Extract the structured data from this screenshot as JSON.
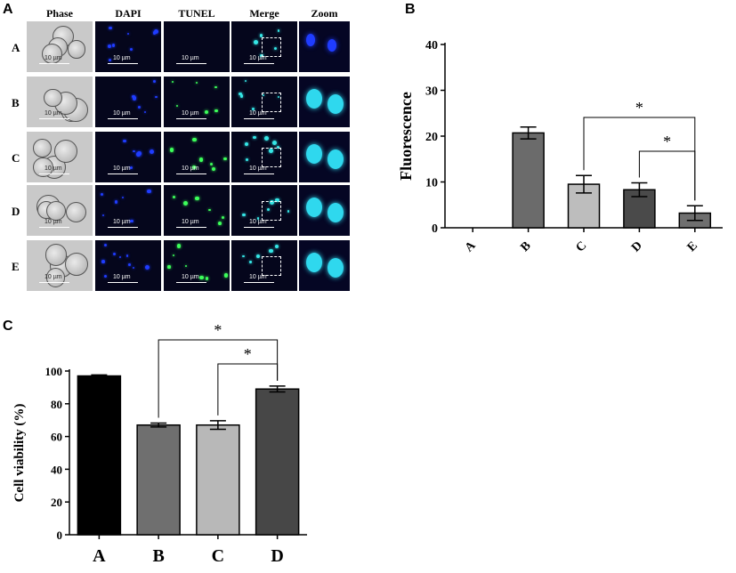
{
  "panels": {
    "a": "A",
    "b": "B",
    "c": "C"
  },
  "microscopy": {
    "columns": [
      "Phase",
      "DAPI",
      "TUNEL",
      "Merge",
      "Zoom"
    ],
    "rows": [
      "A",
      "B",
      "C",
      "D",
      "E"
    ],
    "scale_label": "10 µm",
    "colors": {
      "dapi": "#1f3cff",
      "tunel": "#3cff5a",
      "merge": "#35e6e6"
    }
  },
  "chart_data": [
    {
      "type": "bar",
      "categories": [
        "A",
        "B",
        "C",
        "D",
        "E"
      ],
      "values": [
        0,
        20.7,
        9.5,
        8.3,
        3.2
      ],
      "errors": [
        0,
        1.3,
        1.9,
        1.5,
        1.6
      ],
      "ylabel": "Fluorescence",
      "ylim": [
        0,
        40
      ],
      "yticks": [
        0,
        10,
        20,
        30,
        40
      ],
      "bar_colors": [
        "#ffffff",
        "#6b6b6b",
        "#bdbdbd",
        "#4a4a4a",
        "#6f6f6f"
      ],
      "significance": [
        {
          "from": "C",
          "to": "E",
          "label": "*"
        },
        {
          "from": "D",
          "to": "E",
          "label": "*"
        }
      ],
      "grid": false
    },
    {
      "type": "bar",
      "categories": [
        "A",
        "B",
        "C",
        "D"
      ],
      "values": [
        97,
        67,
        67,
        89
      ],
      "errors": [
        0.6,
        1.2,
        2.6,
        1.8
      ],
      "ylabel": "Cell viability (%)",
      "ylim": [
        0,
        100
      ],
      "yticks": [
        0,
        20,
        40,
        60,
        80,
        100
      ],
      "bar_colors": [
        "#000000",
        "#6f6f6f",
        "#b8b8b8",
        "#474747"
      ],
      "significance": [
        {
          "from": "B",
          "to": "D",
          "label": "*"
        },
        {
          "from": "C",
          "to": "D",
          "label": "*"
        }
      ],
      "grid": false
    }
  ]
}
